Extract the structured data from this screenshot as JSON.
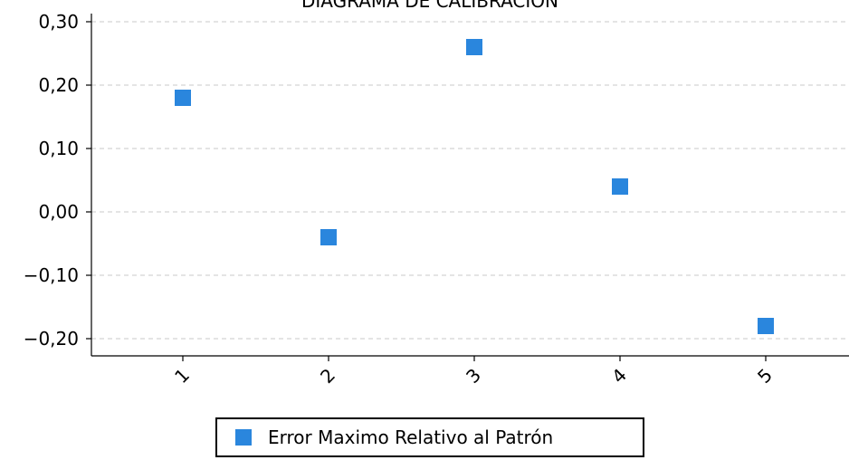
{
  "chart_data": {
    "type": "scatter",
    "title": "DIAGRAMA DE CALIBRACIÓN",
    "xlabel": "",
    "ylabel": "",
    "x": [
      1,
      2,
      3,
      4,
      5
    ],
    "x_tick_labels": [
      "1",
      "2",
      "3",
      "4",
      "5"
    ],
    "y_tick_values": [
      0.3,
      0.2,
      0.1,
      0.0,
      -0.1,
      -0.2
    ],
    "y_tick_labels": [
      "0,30",
      "0,20",
      "0,10",
      "0,00",
      "−0,10",
      "−0,20"
    ],
    "ylim": [
      -0.225,
      0.31
    ],
    "xlim": [
      0,
      5.56
    ],
    "grid": true,
    "legend_placement": "bottom-center",
    "series": [
      {
        "name": "Error Maximo Relativo al Patrón",
        "marker": "square",
        "color": "#2a86dd",
        "values": [
          0.18,
          -0.04,
          0.26,
          0.04,
          -0.18
        ]
      }
    ]
  }
}
